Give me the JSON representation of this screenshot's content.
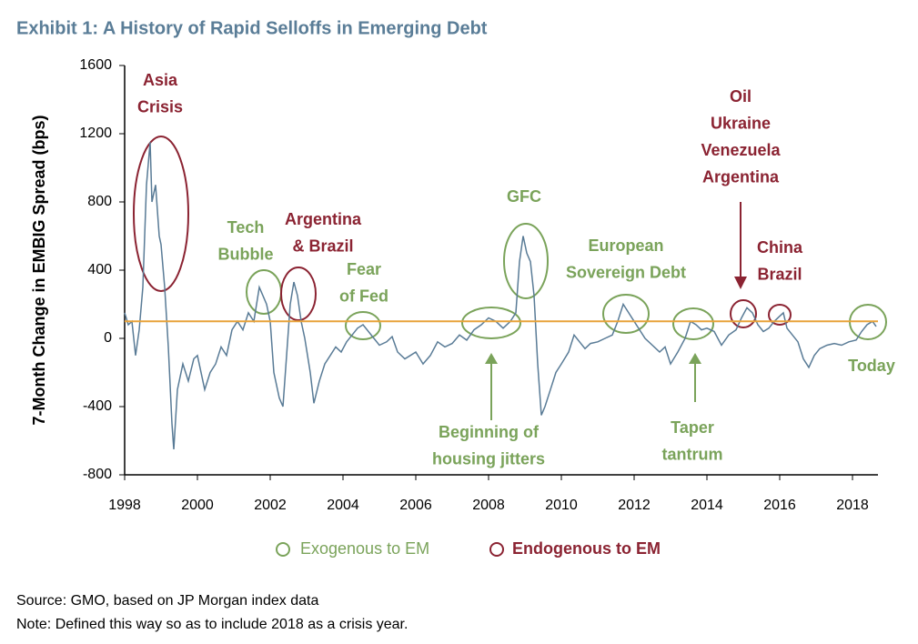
{
  "chart_data": {
    "type": "line",
    "title": "Exhibit 1: A History of Rapid Selloffs in Emerging Debt",
    "y_label": "7-Month Change in EMBIG Spread (bps)",
    "x": [
      1998.0,
      1998.1,
      1998.2,
      1998.3,
      1998.4,
      1998.5,
      1998.6,
      1998.7,
      1998.75,
      1998.85,
      1998.95,
      1999.0,
      1999.1,
      1999.2,
      1999.3,
      1999.35,
      1999.45,
      1999.6,
      1999.75,
      1999.9,
      2000.0,
      2000.2,
      2000.35,
      2000.5,
      2000.65,
      2000.8,
      2000.95,
      2001.1,
      2001.25,
      2001.4,
      2001.55,
      2001.7,
      2001.8,
      2001.9,
      2002.0,
      2002.1,
      2002.25,
      2002.35,
      2002.45,
      2002.55,
      2002.65,
      2002.75,
      2002.85,
      2002.95,
      2003.1,
      2003.2,
      2003.35,
      2003.5,
      2003.65,
      2003.8,
      2003.95,
      2004.1,
      2004.25,
      2004.4,
      2004.55,
      2004.7,
      2004.85,
      2005.0,
      2005.2,
      2005.35,
      2005.5,
      2005.7,
      2005.85,
      2006.0,
      2006.2,
      2006.4,
      2006.6,
      2006.8,
      2007.0,
      2007.2,
      2007.4,
      2007.6,
      2007.8,
      2008.0,
      2008.2,
      2008.4,
      2008.6,
      2008.75,
      2008.85,
      2008.95,
      2009.05,
      2009.15,
      2009.25,
      2009.35,
      2009.45,
      2009.55,
      2009.7,
      2009.85,
      2010.0,
      2010.2,
      2010.35,
      2010.5,
      2010.65,
      2010.8,
      2011.0,
      2011.2,
      2011.4,
      2011.55,
      2011.7,
      2011.85,
      2012.0,
      2012.15,
      2012.3,
      2012.5,
      2012.7,
      2012.85,
      2013.0,
      2013.2,
      2013.4,
      2013.55,
      2013.7,
      2013.85,
      2014.0,
      2014.2,
      2014.4,
      2014.6,
      2014.8,
      2014.95,
      2015.1,
      2015.25,
      2015.4,
      2015.55,
      2015.7,
      2015.85,
      2016.0,
      2016.1,
      2016.2,
      2016.35,
      2016.5,
      2016.65,
      2016.8,
      2016.95,
      2017.1,
      2017.3,
      2017.5,
      2017.7,
      2017.9,
      2018.1,
      2018.25,
      2018.4,
      2018.55,
      2018.65
    ],
    "series": [
      {
        "color": "#597b96",
        "values": [
          150,
          80,
          100,
          -100,
          50,
          300,
          900,
          1150,
          800,
          900,
          600,
          550,
          300,
          -50,
          -500,
          -650,
          -300,
          -150,
          -250,
          -120,
          -100,
          -300,
          -200,
          -150,
          -50,
          -100,
          50,
          100,
          50,
          150,
          100,
          300,
          250,
          200,
          100,
          -200,
          -350,
          -400,
          -100,
          200,
          330,
          250,
          100,
          0,
          -200,
          -380,
          -250,
          -150,
          -100,
          -50,
          -80,
          -20,
          20,
          60,
          80,
          40,
          0,
          -40,
          -20,
          10,
          -80,
          -120,
          -100,
          -80,
          -150,
          -100,
          -20,
          -50,
          -30,
          20,
          -10,
          50,
          80,
          120,
          100,
          60,
          100,
          150,
          450,
          600,
          500,
          450,
          250,
          -150,
          -450,
          -400,
          -300,
          -200,
          -150,
          -80,
          20,
          -20,
          -60,
          -30,
          -20,
          0,
          20,
          100,
          200,
          150,
          100,
          50,
          0,
          -40,
          -80,
          -50,
          -150,
          -80,
          0,
          100,
          80,
          50,
          60,
          40,
          -40,
          20,
          50,
          120,
          180,
          150,
          80,
          40,
          60,
          100,
          130,
          150,
          60,
          20,
          -20,
          -120,
          -170,
          -100,
          -60,
          -40,
          -30,
          -40,
          -20,
          -10,
          40,
          80,
          100,
          70
        ]
      }
    ],
    "reference_line": {
      "value": 100,
      "color": "#e8a33a"
    },
    "xlim": [
      1998,
      2018.7
    ],
    "xticks": [
      1998,
      2000,
      2002,
      2004,
      2006,
      2008,
      2010,
      2012,
      2014,
      2016,
      2018
    ],
    "ylim": [
      -800,
      1600
    ],
    "yticks": [
      -800,
      -400,
      0,
      400,
      800,
      1200,
      1600
    ],
    "annotations": [
      {
        "lines": [
          "Asia",
          "Crisis"
        ],
        "color": "#8b2332"
      },
      {
        "lines": [
          "Tech",
          "Bubble"
        ],
        "color": "#7aa35a"
      },
      {
        "lines": [
          "Argentina",
          "& Brazil"
        ],
        "color": "#8b2332"
      },
      {
        "lines": [
          "Fear",
          "of Fed"
        ],
        "color": "#7aa35a"
      },
      {
        "lines": [
          "GFC"
        ],
        "color": "#7aa35a"
      },
      {
        "lines": [
          "European",
          "Sovereign Debt"
        ],
        "color": "#7aa35a"
      },
      {
        "lines": [
          "Oil",
          "Ukraine",
          "Venezuela",
          "Argentina"
        ],
        "color": "#8b2332"
      },
      {
        "lines": [
          "China",
          "Brazil"
        ],
        "color": "#8b2332"
      },
      {
        "lines": [
          "Today"
        ],
        "color": "#7aa35a"
      },
      {
        "lines": [
          "Beginning of",
          "housing jitters"
        ],
        "color": "#7aa35a"
      },
      {
        "lines": [
          "Taper",
          "tantrum"
        ],
        "color": "#7aa35a"
      }
    ],
    "legend_entries": [
      {
        "name": "Exogenous to EM",
        "color": "#7aa35a"
      },
      {
        "name": "Endogenous to EM",
        "color": "#8b2332"
      }
    ],
    "notes": [
      "Source: GMO, based on JP Morgan index data",
      "Note: Defined this way so as to include 2018 as a crisis year."
    ]
  }
}
